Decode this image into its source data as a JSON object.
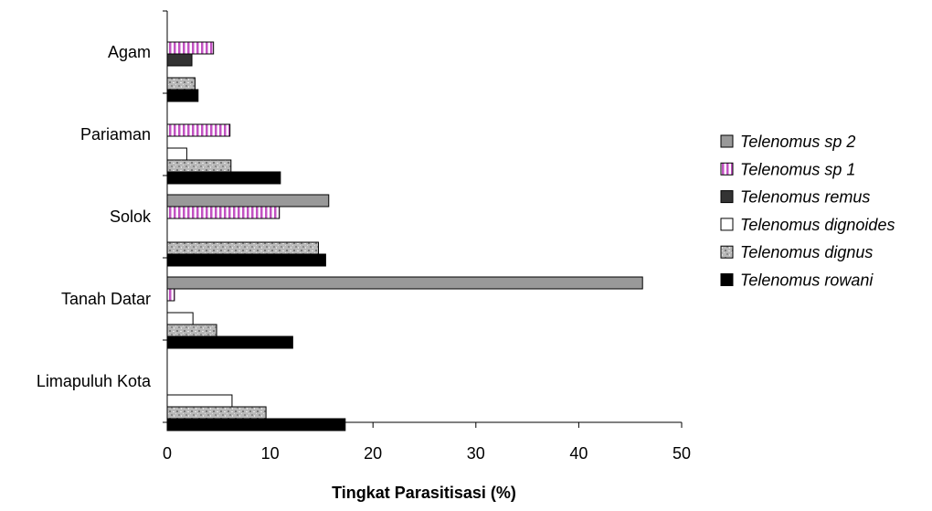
{
  "chart_data": {
    "type": "bar",
    "orientation": "horizontal",
    "title": "",
    "xlabel": "Tingkat Parasitisasi (%)",
    "ylabel": "",
    "xlim": [
      0,
      50
    ],
    "xticks": [
      "0",
      "10",
      "20",
      "30",
      "40",
      "50"
    ],
    "grid": false,
    "legend_position": "right",
    "categories": [
      "Agam",
      "Pariaman",
      "Solok",
      "Tanah Datar",
      "Limapuluh Kota"
    ],
    "series": [
      {
        "name": "Telenomus sp 2",
        "color": "#999999",
        "pattern": "solid-gray",
        "values": [
          0,
          0,
          15.7,
          46.2,
          0
        ]
      },
      {
        "name": "Telenomus sp 1",
        "color": "#cc66cc",
        "pattern": "vertical-stripes",
        "values": [
          4.5,
          6.1,
          10.9,
          0.7,
          0
        ]
      },
      {
        "name": "Telenomus remus",
        "color": "#333333",
        "pattern": "solid-dark",
        "values": [
          2.4,
          0,
          0,
          0,
          0
        ]
      },
      {
        "name": "Telenomus dignoides",
        "color": "#ffffff",
        "pattern": "white",
        "values": [
          0,
          1.9,
          0,
          2.5,
          6.3
        ]
      },
      {
        "name": "Telenomus dignus",
        "color": "#bbbbbb",
        "pattern": "speckled",
        "values": [
          2.7,
          6.2,
          14.7,
          4.8,
          9.6
        ]
      },
      {
        "name": "Telenomus rowani",
        "color": "#000000",
        "pattern": "solid-black",
        "values": [
          3.0,
          11.0,
          15.4,
          12.2,
          17.3
        ]
      }
    ]
  }
}
